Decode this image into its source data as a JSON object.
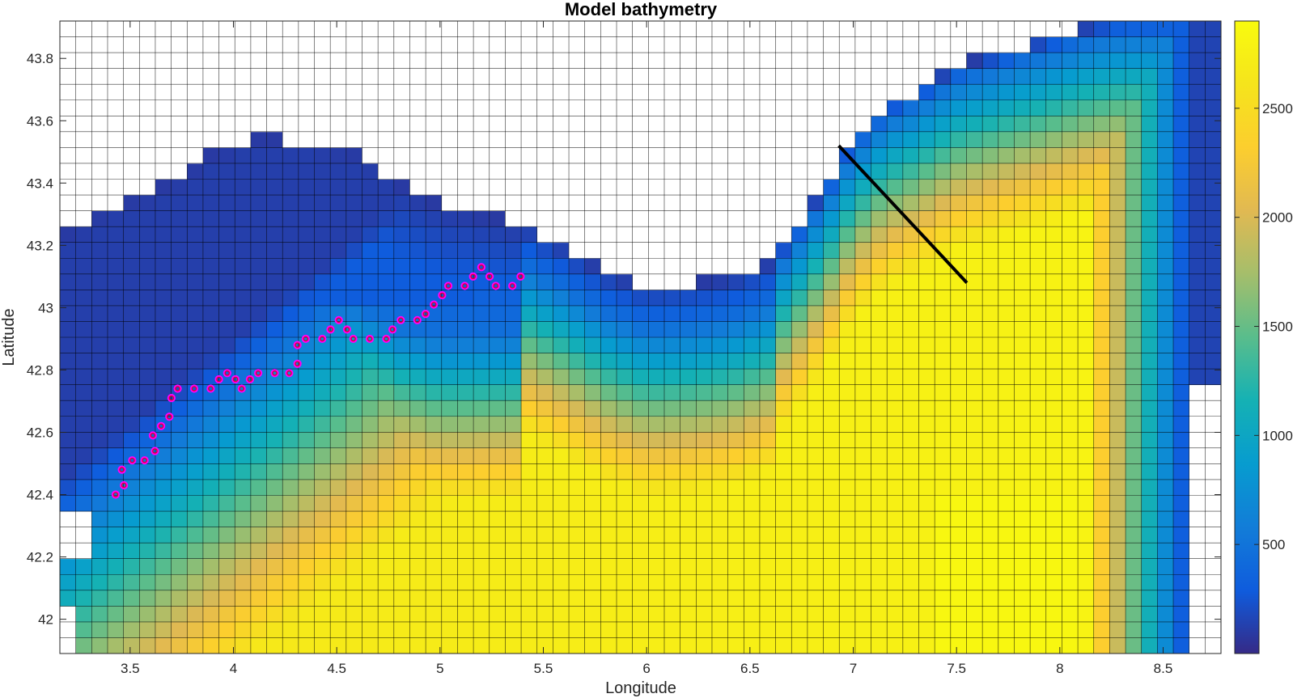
{
  "chart_data": {
    "type": "heatmap",
    "title": "Model bathymetry",
    "xlabel": "Longitude",
    "ylabel": "Latitude",
    "xlim": [
      3.16,
      8.78
    ],
    "ylim": [
      41.89,
      43.92
    ],
    "x_ticks": [
      3.5,
      4,
      4.5,
      5,
      5.5,
      6,
      6.5,
      7,
      7.5,
      8,
      8.5
    ],
    "x_tick_labels": [
      "3.5",
      "4",
      "4.5",
      "5",
      "5.5",
      "6",
      "6.5",
      "7",
      "7.5",
      "8",
      "8.5"
    ],
    "y_ticks": [
      42,
      42.2,
      42.4,
      42.6,
      42.8,
      43,
      43.2,
      43.4,
      43.6,
      43.8
    ],
    "y_tick_labels": [
      "42",
      "42.2",
      "42.4",
      "42.6",
      "42.8",
      "43",
      "43.2",
      "43.4",
      "43.6",
      "43.8"
    ],
    "colorbar": {
      "range": [
        0,
        2900
      ],
      "ticks": [
        500,
        1000,
        1500,
        2000,
        2500
      ],
      "tick_labels": [
        "500",
        "1000",
        "1500",
        "2000",
        "2500"
      ],
      "colormap": "parula"
    },
    "grid": {
      "nx": 73,
      "ny": 40,
      "lon_start": 3.16,
      "lon_step": 0.077,
      "lat_start": 41.89,
      "lat_step": 0.0508
    },
    "coastline_rows_max_lat_index": "land masked white",
    "section_line": {
      "lon": [
        6.93,
        7.55
      ],
      "lat": [
        43.52,
        43.08
      ],
      "color": "#000000"
    },
    "markers": {
      "edge_color": "#ff00ff",
      "inner_color": "#dd0033",
      "lon": [
        3.43,
        3.47,
        3.46,
        3.51,
        3.57,
        3.62,
        3.61,
        3.65,
        3.69,
        3.7,
        3.73,
        3.81,
        3.89,
        3.93,
        3.97,
        4.01,
        4.04,
        4.08,
        4.12,
        4.2,
        4.27,
        4.31,
        4.31,
        4.35,
        4.43,
        4.47,
        4.51,
        4.55,
        4.58,
        4.66,
        4.74,
        4.77,
        4.81,
        4.89,
        4.93,
        4.97,
        5.01,
        5.04,
        5.12,
        5.16,
        5.2,
        5.24,
        5.27,
        5.35,
        5.39
      ],
      "lat": [
        42.4,
        42.43,
        42.48,
        42.51,
        42.51,
        42.54,
        42.59,
        42.62,
        42.65,
        42.71,
        42.74,
        42.74,
        42.74,
        42.77,
        42.79,
        42.77,
        42.74,
        42.77,
        42.79,
        42.79,
        42.79,
        42.82,
        42.88,
        42.9,
        42.9,
        42.93,
        42.96,
        42.93,
        42.9,
        42.9,
        42.9,
        42.93,
        42.96,
        42.96,
        42.98,
        43.01,
        43.04,
        43.07,
        43.07,
        43.1,
        43.13,
        43.1,
        43.07,
        43.07,
        43.1
      ]
    }
  }
}
